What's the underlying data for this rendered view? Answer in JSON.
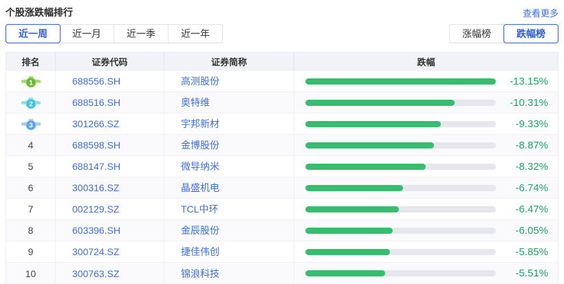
{
  "header": {
    "title": "个股涨跌幅排行",
    "more_link": "查看更多"
  },
  "period_tabs": {
    "items": [
      "近一周",
      "近一月",
      "近一季",
      "近一年"
    ],
    "selected": "近一周"
  },
  "board_toggle": {
    "items": [
      "涨幅榜",
      "跌幅榜"
    ],
    "selected": "跌幅榜"
  },
  "table": {
    "columns": [
      "排名",
      "证券代码",
      "证券简称",
      "跌幅"
    ],
    "rows": [
      {
        "rank": 1,
        "code": "688556.SH",
        "name": "高测股份",
        "change_label": "-13.15%",
        "change_value": -13.15
      },
      {
        "rank": 2,
        "code": "688516.SH",
        "name": "奥特维",
        "change_label": "-10.31%",
        "change_value": -10.31
      },
      {
        "rank": 3,
        "code": "301266.SZ",
        "name": "宇邦新材",
        "change_label": "-9.33%",
        "change_value": -9.33
      },
      {
        "rank": 4,
        "code": "688598.SH",
        "name": "金博股份",
        "change_label": "-8.87%",
        "change_value": -8.87
      },
      {
        "rank": 5,
        "code": "688147.SH",
        "name": "微导纳米",
        "change_label": "-8.32%",
        "change_value": -8.32
      },
      {
        "rank": 6,
        "code": "300316.SZ",
        "name": "晶盛机电",
        "change_label": "-6.74%",
        "change_value": -6.74
      },
      {
        "rank": 7,
        "code": "002129.SZ",
        "name": "TCL中环",
        "change_label": "-6.47%",
        "change_value": -6.47
      },
      {
        "rank": 8,
        "code": "603396.SH",
        "name": "金辰股份",
        "change_label": "-6.05%",
        "change_value": -6.05
      },
      {
        "rank": 9,
        "code": "300724.SZ",
        "name": "捷佳伟创",
        "change_label": "-5.85%",
        "change_value": -5.85
      },
      {
        "rank": 10,
        "code": "300763.SZ",
        "name": "锦浪科技",
        "change_label": "-5.51%",
        "change_value": -5.51
      }
    ]
  },
  "medals": [
    {
      "body": "#66b93c",
      "wing": "#a9d968"
    },
    {
      "body": "#3fc3d6",
      "wing": "#8fdfe9"
    },
    {
      "body": "#55a4ec",
      "wing": "#a3cdf5"
    }
  ],
  "colors": {
    "accent_blue": "#2b5fd9",
    "link_blue": "#3f6fd8",
    "bar_green": "#36bd6e",
    "pct_green": "#18a666",
    "bar_track": "#e6e6ef",
    "header_bg": "#f2f3f8"
  }
}
